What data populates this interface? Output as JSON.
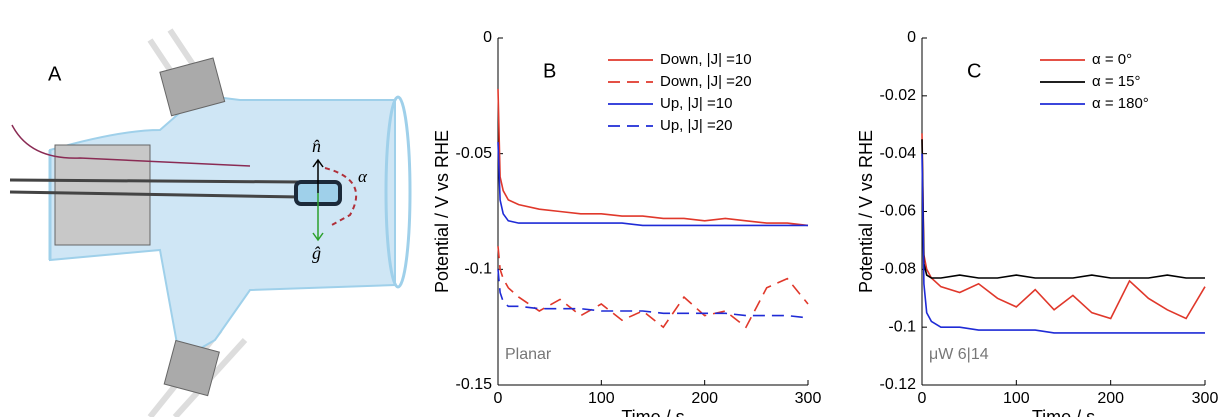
{
  "diagram": {
    "label": "A",
    "normal": "n̂",
    "gravity": "ĝ",
    "angle": "α"
  },
  "chart_data": [
    {
      "type": "line",
      "panel_label": "B",
      "xlabel": "Time / s",
      "ylabel": "Potential / V vs RHE",
      "annotation": "Planar",
      "xlim": [
        0,
        300
      ],
      "xticks": [
        0,
        100,
        200,
        300
      ],
      "ylim": [
        -0.15,
        0
      ],
      "yticks": [
        -0.15,
        -0.1,
        -0.05,
        0
      ],
      "legend": "upper right",
      "x": [
        0,
        2,
        5,
        10,
        20,
        40,
        60,
        80,
        100,
        120,
        140,
        160,
        180,
        200,
        220,
        240,
        260,
        280,
        300
      ],
      "series": [
        {
          "name": "Down, |J| =10",
          "color": "#e0382b",
          "linestyle": "solid",
          "values": [
            -0.022,
            -0.06,
            -0.066,
            -0.07,
            -0.072,
            -0.074,
            -0.075,
            -0.076,
            -0.076,
            -0.077,
            -0.077,
            -0.078,
            -0.078,
            -0.079,
            -0.078,
            -0.079,
            -0.08,
            -0.08,
            -0.081
          ]
        },
        {
          "name": "Down, |J| =20",
          "color": "#e0382b",
          "linestyle": "dashed",
          "values": [
            -0.09,
            -0.1,
            -0.104,
            -0.108,
            -0.112,
            -0.118,
            -0.113,
            -0.12,
            -0.115,
            -0.122,
            -0.118,
            -0.125,
            -0.112,
            -0.12,
            -0.118,
            -0.125,
            -0.108,
            -0.104,
            -0.115
          ]
        },
        {
          "name": "Up, |J| =10",
          "color": "#1f2bd6",
          "linestyle": "solid",
          "values": [
            -0.045,
            -0.07,
            -0.076,
            -0.079,
            -0.08,
            -0.08,
            -0.08,
            -0.08,
            -0.08,
            -0.08,
            -0.081,
            -0.081,
            -0.081,
            -0.081,
            -0.081,
            -0.081,
            -0.081,
            -0.081,
            -0.081
          ]
        },
        {
          "name": "Up, |J| =20",
          "color": "#1f2bd6",
          "linestyle": "dashed",
          "values": [
            -0.1,
            -0.11,
            -0.114,
            -0.116,
            -0.116,
            -0.117,
            -0.117,
            -0.117,
            -0.118,
            -0.118,
            -0.118,
            -0.119,
            -0.119,
            -0.119,
            -0.119,
            -0.12,
            -0.12,
            -0.12,
            -0.121
          ]
        }
      ]
    },
    {
      "type": "line",
      "panel_label": "C",
      "xlabel": "Time / s",
      "ylabel": "Potential / V vs RHE",
      "annotation": "μW 6|14",
      "xlim": [
        0,
        300
      ],
      "xticks": [
        0,
        100,
        200,
        300
      ],
      "ylim": [
        -0.12,
        0
      ],
      "yticks": [
        -0.12,
        -0.1,
        -0.08,
        -0.06,
        -0.04,
        -0.02,
        0
      ],
      "legend": "upper right",
      "x": [
        0,
        2,
        5,
        10,
        20,
        40,
        60,
        80,
        100,
        120,
        140,
        160,
        180,
        200,
        220,
        240,
        260,
        280,
        300
      ],
      "series": [
        {
          "name": "α = 0°",
          "color": "#e0382b",
          "linestyle": "solid",
          "values": [
            -0.033,
            -0.075,
            -0.08,
            -0.083,
            -0.086,
            -0.088,
            -0.085,
            -0.09,
            -0.093,
            -0.087,
            -0.094,
            -0.089,
            -0.095,
            -0.097,
            -0.084,
            -0.09,
            -0.094,
            -0.097,
            -0.086
          ]
        },
        {
          "name": "α = 15°",
          "color": "#000000",
          "linestyle": "solid",
          "values": [
            -0.035,
            -0.078,
            -0.082,
            -0.083,
            -0.083,
            -0.082,
            -0.083,
            -0.083,
            -0.082,
            -0.083,
            -0.083,
            -0.083,
            -0.082,
            -0.083,
            -0.083,
            -0.083,
            -0.082,
            -0.083,
            -0.083
          ]
        },
        {
          "name": "α = 180°",
          "color": "#1f2bd6",
          "linestyle": "solid",
          "values": [
            -0.04,
            -0.085,
            -0.095,
            -0.098,
            -0.1,
            -0.1,
            -0.101,
            -0.101,
            -0.101,
            -0.101,
            -0.102,
            -0.102,
            -0.102,
            -0.102,
            -0.102,
            -0.102,
            -0.102,
            -0.102,
            -0.102
          ]
        }
      ]
    }
  ]
}
